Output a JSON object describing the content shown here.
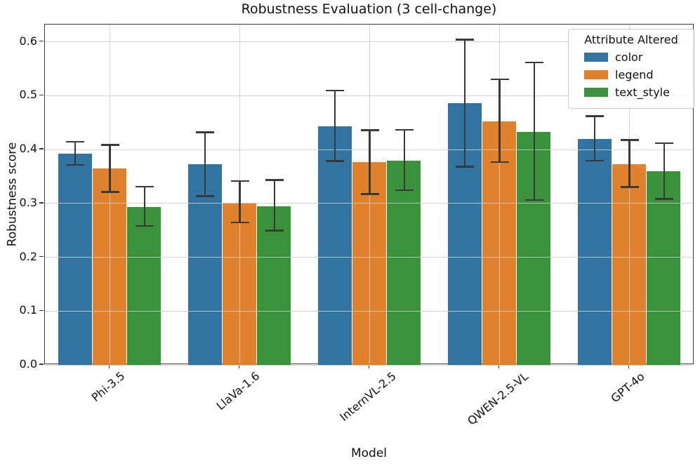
{
  "chart_data": {
    "type": "bar",
    "title": "Robustness Evaluation (3 cell-change)",
    "xlabel": "Model",
    "ylabel": "Robustness score",
    "categories": [
      "Phi-3.5",
      "LlaVa-1.6",
      "InternVL-2.5",
      "QWEN-2.5-VL",
      "GPT-4o"
    ],
    "series": [
      {
        "name": "color",
        "color": "#3274a1",
        "values": [
          0.392,
          0.373,
          0.443,
          0.486,
          0.419
        ],
        "error_low": [
          0.371,
          0.313,
          0.378,
          0.368,
          0.379
        ],
        "error_high": [
          0.415,
          0.432,
          0.51,
          0.604,
          0.462
        ]
      },
      {
        "name": "legend",
        "color": "#e1812c",
        "values": [
          0.365,
          0.301,
          0.376,
          0.452,
          0.373
        ],
        "error_low": [
          0.321,
          0.264,
          0.317,
          0.376,
          0.33
        ],
        "error_high": [
          0.409,
          0.342,
          0.436,
          0.531,
          0.418
        ]
      },
      {
        "name": "text_style",
        "color": "#3a923a",
        "values": [
          0.293,
          0.295,
          0.379,
          0.433,
          0.36
        ],
        "error_low": [
          0.258,
          0.249,
          0.324,
          0.306,
          0.308
        ],
        "error_high": [
          0.331,
          0.344,
          0.437,
          0.562,
          0.412
        ]
      }
    ],
    "ylim": [
      0.0,
      0.632
    ],
    "yticks": [
      "0.0",
      "0.1",
      "0.2",
      "0.3",
      "0.4",
      "0.5",
      "0.6"
    ],
    "grid": true,
    "error_bar_color": "#3a3a3a",
    "legend": {
      "title": "Attribute Altered",
      "position": "upper right"
    }
  }
}
